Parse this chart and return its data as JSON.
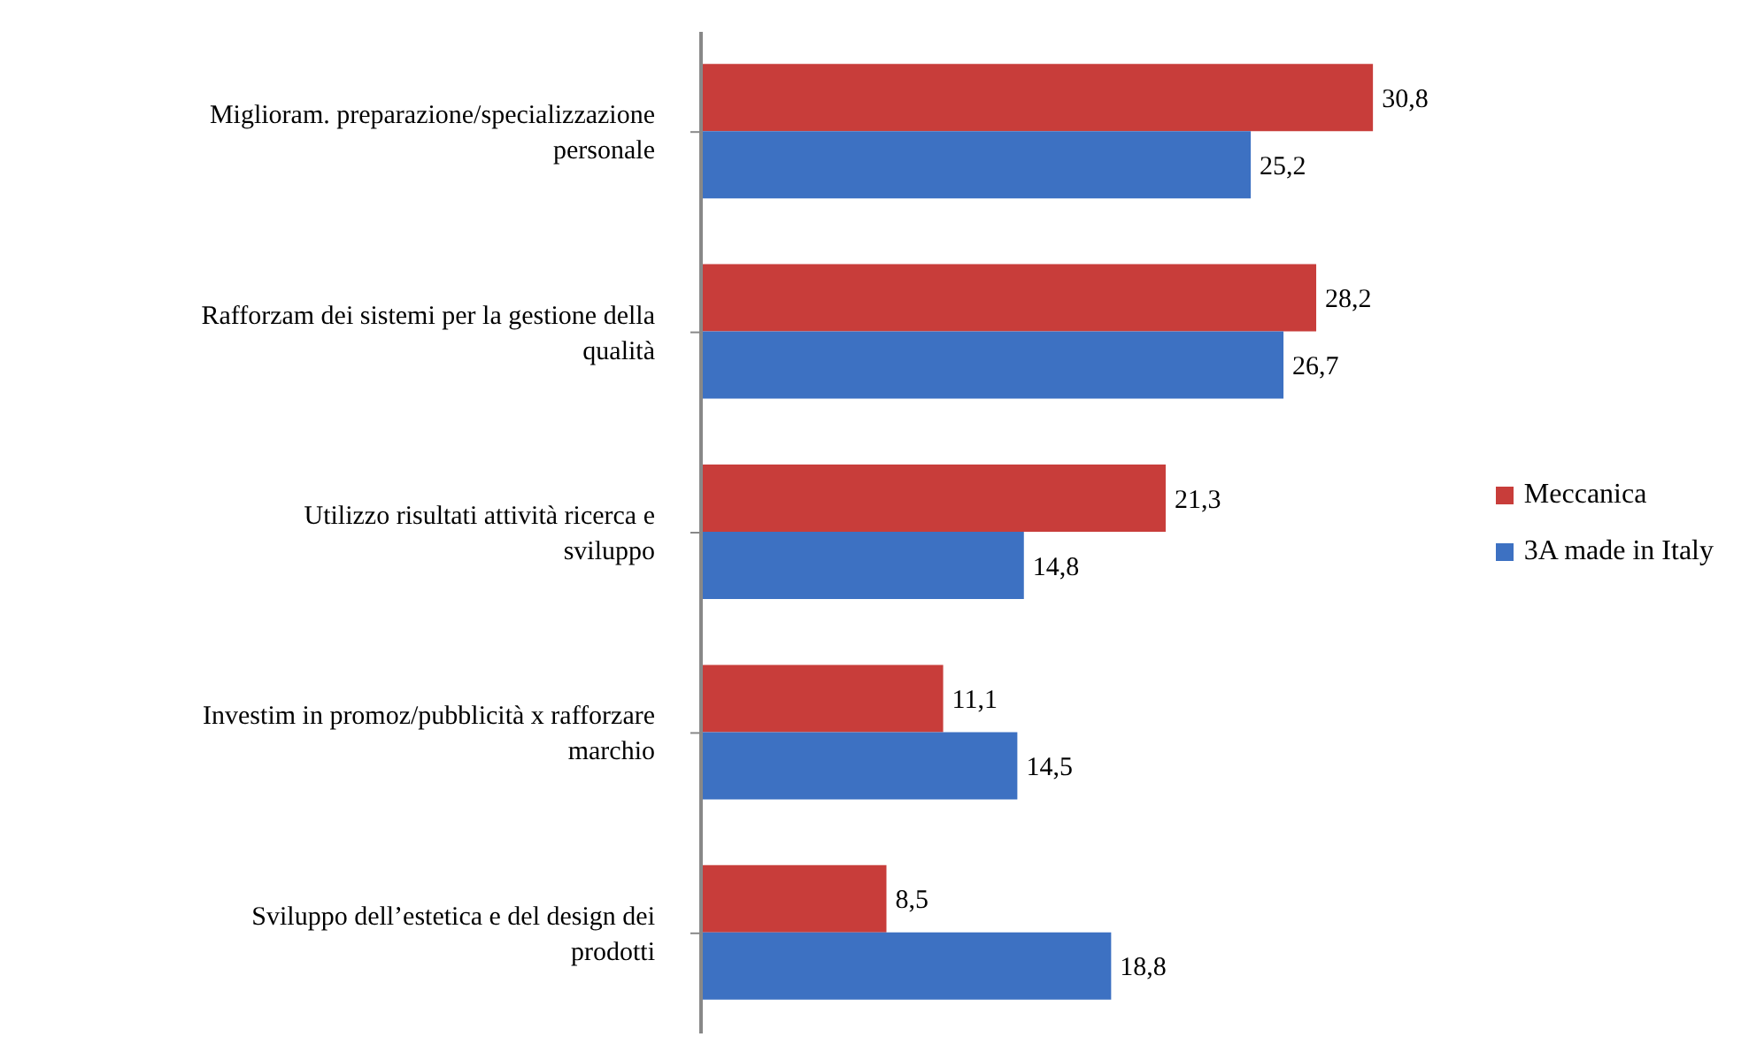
{
  "chart_data": {
    "type": "bar",
    "orientation": "horizontal",
    "categories": [
      "Miglioram. preparazione/specializzazione personale",
      "Rafforzam dei sistemi per la gestione della qualità",
      "Utilizzo risultati attività ricerca e sviluppo",
      "Investim in promoz/pubblicità x rafforzare marchio",
      "Sviluppo dell’estetica e del design dei prodotti"
    ],
    "series": [
      {
        "name": "Meccanica",
        "color": "#c83d3a",
        "values": [
          30.8,
          28.2,
          21.3,
          11.1,
          8.5
        ],
        "value_labels": [
          "30,8",
          "28,2",
          "21,3",
          "11,1",
          "8,5"
        ]
      },
      {
        "name": "3A made in Italy",
        "color": "#3d71c2",
        "values": [
          25.2,
          26.7,
          14.8,
          14.5,
          18.8
        ],
        "value_labels": [
          "25,2",
          "26,7",
          "14,8",
          "14,5",
          "18,8"
        ]
      }
    ],
    "legend": "right"
  }
}
